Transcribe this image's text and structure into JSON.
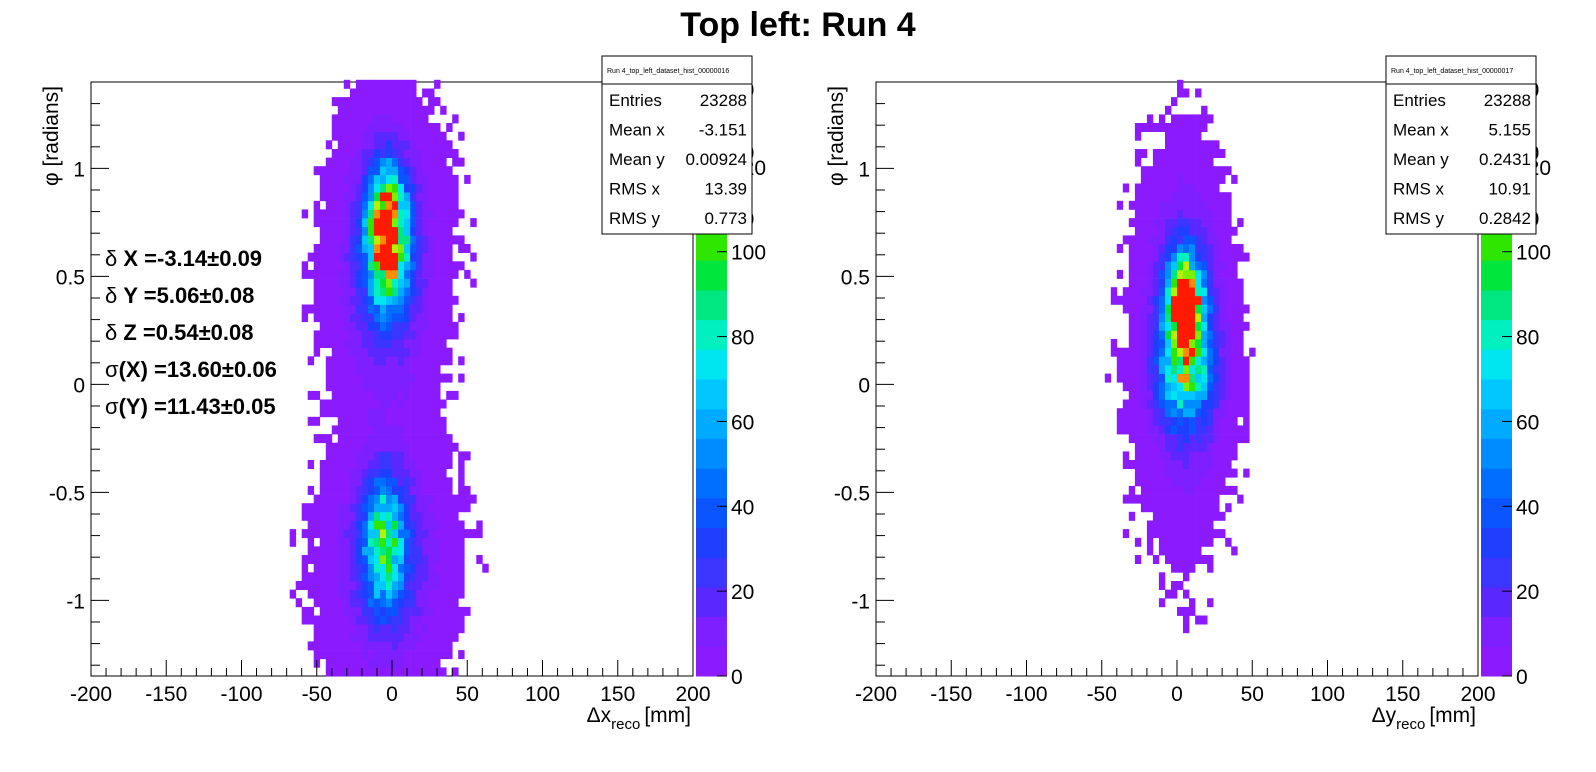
{
  "figure": {
    "title": "Top left: Run 4"
  },
  "chart_data": [
    {
      "type": "heatmap",
      "xlabel": "Δx_reco [mm]",
      "xlabel_main": "Δx",
      "xlabel_sub": "reco",
      "xlabel_unit": "[mm]",
      "ylabel": "φ [radians]",
      "xlim": [
        -200,
        200
      ],
      "ylim": [
        -1.35,
        1.4
      ],
      "x_ticks": [
        "-200",
        "-150",
        "-100",
        "-50",
        "0",
        "50",
        "100",
        "150",
        "200"
      ],
      "y_ticks": [
        "-1",
        "-0.5",
        "0",
        "0.5",
        "1"
      ],
      "colorbar": {
        "range": [
          0,
          140
        ],
        "ticks": [
          "0",
          "20",
          "40",
          "60",
          "80",
          "100",
          "120"
        ],
        "partial_labels": [
          "80",
          "60",
          "40"
        ]
      },
      "stats_box": {
        "name": "Run 4_top_left_dataset_hist_00000016",
        "rows": [
          {
            "label": "Entries",
            "value": "23288"
          },
          {
            "label": "Mean x",
            "value": "-3.151"
          },
          {
            "label": "Mean y",
            "value": "0.00924"
          },
          {
            "label": "RMS x",
            "value": "13.39"
          },
          {
            "label": "RMS y",
            "value": "0.773"
          }
        ]
      },
      "fit_results": [
        {
          "sym": "δ",
          "label": " X =-3.14±0.09"
        },
        {
          "sym": "δ",
          "label": " Y =5.06±0.08"
        },
        {
          "sym": "δ",
          "label": " Z =0.54±0.08"
        },
        {
          "sym": "σ",
          "label": "(X) =13.60±0.06"
        },
        {
          "sym": "σ",
          "label": "(Y) =11.43±0.05"
        }
      ],
      "clusters": [
        {
          "x": -3,
          "y": 0.7,
          "sx": 9,
          "sy": 0.2,
          "peak": 140
        },
        {
          "x": -4,
          "y": 0.55,
          "sx": 18,
          "sy": 0.35,
          "peak": 30
        },
        {
          "x": -5,
          "y": -0.72,
          "sx": 9,
          "sy": 0.2,
          "peak": 75
        },
        {
          "x": -3,
          "y": -0.8,
          "sx": 20,
          "sy": 0.28,
          "peak": 28
        }
      ]
    },
    {
      "type": "heatmap",
      "xlabel": "Δy_reco [mm]",
      "xlabel_main": "Δy",
      "xlabel_sub": "reco",
      "xlabel_unit": "[mm]",
      "ylabel": "φ [radians]",
      "xlim": [
        -200,
        200
      ],
      "ylim": [
        -1.35,
        1.4
      ],
      "x_ticks": [
        "-200",
        "-150",
        "-100",
        "-50",
        "0",
        "50",
        "100",
        "150",
        "200"
      ],
      "y_ticks": [
        "-1",
        "-0.5",
        "0",
        "0.5",
        "1"
      ],
      "colorbar": {
        "range": [
          0,
          140
        ],
        "ticks": [
          "0",
          "20",
          "40",
          "60",
          "80",
          "100",
          "120"
        ],
        "partial_labels": [
          "80",
          "60",
          "40"
        ]
      },
      "stats_box": {
        "name": "Run 4_top_left_dataset_hist_00000017",
        "rows": [
          {
            "label": "Entries",
            "value": "23288"
          },
          {
            "label": "Mean x",
            "value": "5.155"
          },
          {
            "label": "Mean y",
            "value": "0.2431"
          },
          {
            "label": "RMS x",
            "value": "10.91"
          },
          {
            "label": "RMS y",
            "value": "0.2842"
          }
        ]
      },
      "fit_results": [],
      "clusters": [
        {
          "x": 5,
          "y": 0.38,
          "sx": 7,
          "sy": 0.12,
          "peak": 140
        },
        {
          "x": 5,
          "y": 0.25,
          "sx": 12,
          "sy": 0.3,
          "peak": 55
        },
        {
          "x": 6,
          "y": 0.05,
          "sx": 13,
          "sy": 0.15,
          "peak": 45
        },
        {
          "x": 4,
          "y": 0.15,
          "sx": 16,
          "sy": 0.45,
          "peak": 12
        }
      ]
    }
  ]
}
